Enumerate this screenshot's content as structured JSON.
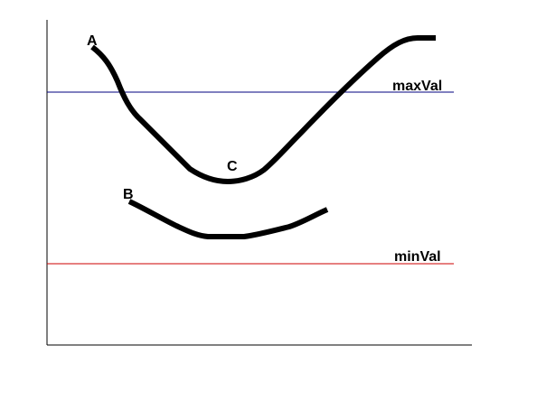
{
  "lines": {
    "max": {
      "label": "maxVal",
      "color": "#00007f"
    },
    "min": {
      "label": "minVal",
      "color": "#cc0000"
    }
  },
  "points": {
    "a": {
      "label": "A"
    },
    "b": {
      "label": "B"
    },
    "c": {
      "label": "C"
    }
  },
  "colors": {
    "axis": "#000000",
    "curve": "#000000"
  }
}
